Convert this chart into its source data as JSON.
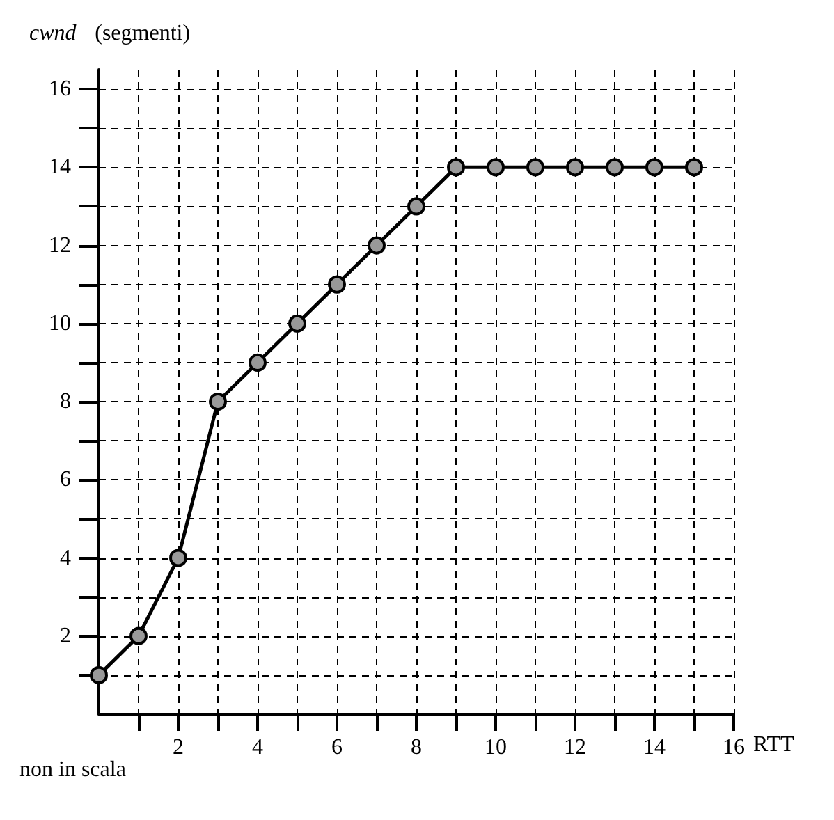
{
  "chart_data": {
    "type": "line",
    "xlabel": "RTT",
    "ylabel": "cwnd (segmenti)",
    "annotations": [
      "non in scala"
    ],
    "x": [
      0,
      1,
      2,
      3,
      4,
      5,
      6,
      7,
      8,
      9,
      10,
      11,
      12,
      13,
      14,
      15
    ],
    "series": [
      {
        "color": "#000000",
        "values": [
          1,
          2,
          4,
          8,
          9,
          10,
          11,
          12,
          13,
          14,
          14,
          14,
          14,
          14,
          14,
          14
        ]
      }
    ],
    "xlim": [
      0,
      16
    ],
    "ylim": [
      0,
      16.5
    ],
    "xticks": [
      {
        "value": 1,
        "label": null
      },
      2,
      {
        "value": 3,
        "label": null
      },
      4,
      {
        "value": 5,
        "label": null
      },
      6,
      {
        "value": 7,
        "label": null
      },
      8,
      {
        "value": 9,
        "label": null
      },
      10,
      {
        "value": 11,
        "label": null
      },
      12,
      {
        "value": 13,
        "label": null
      },
      14,
      {
        "value": 15,
        "label": null
      },
      16
    ],
    "yticks": [
      {
        "value": 1,
        "label": null
      },
      2,
      {
        "value": 3,
        "label": null
      },
      4,
      {
        "value": 5,
        "label": null
      },
      6,
      {
        "value": 7,
        "label": null
      },
      8,
      {
        "value": 9,
        "label": null
      },
      10,
      {
        "value": 11,
        "label": null
      },
      12,
      {
        "value": 13,
        "label": null
      },
      14,
      {
        "value": 15,
        "label": null
      },
      16
    ],
    "grid": true,
    "marker": "circle",
    "line_style": "solid"
  }
}
